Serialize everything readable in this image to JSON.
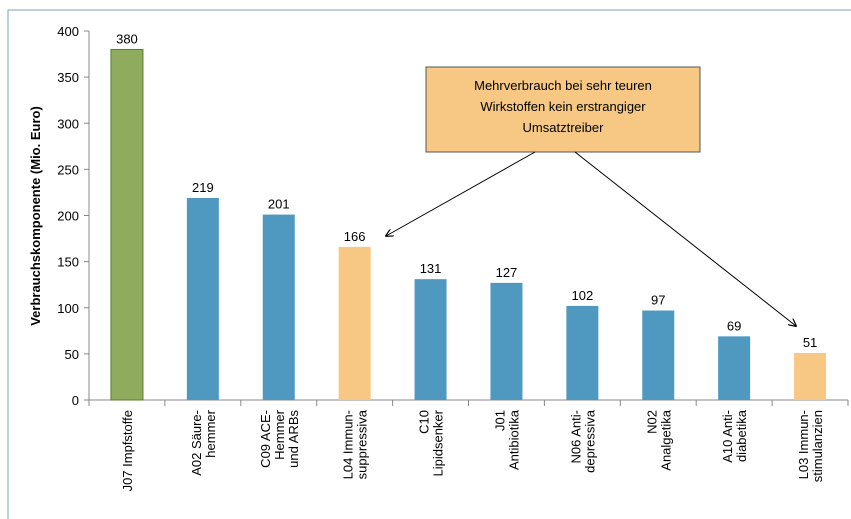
{
  "chart_data": {
    "type": "bar",
    "y_label": "Verbrauchskomponente (Mio. Euro)",
    "categories": [
      [
        "J07 Impfstoffe"
      ],
      [
        "A02 Säure-",
        "hemmer"
      ],
      [
        "C09 ACE-",
        "Hemmer",
        "und ARBs"
      ],
      [
        "L04 Immun-",
        "suppressiva"
      ],
      [
        "C10",
        "Lipidsenker"
      ],
      [
        "J01",
        "Antibiotika"
      ],
      [
        "N06 Anti-",
        "depressiva"
      ],
      [
        "N02",
        "Analgetika"
      ],
      [
        "A10 Anti-",
        "diabetika"
      ],
      [
        "L03 Immun-",
        "stimulanzien"
      ]
    ],
    "values": [
      380,
      219,
      201,
      166,
      131,
      127,
      102,
      97,
      69,
      51
    ],
    "colors": [
      "#8fac5e",
      "#4f98c0",
      "#4f98c0",
      "#f6c883",
      "#4f98c0",
      "#4f98c0",
      "#4f98c0",
      "#4f98c0",
      "#4f98c0",
      "#f6c883"
    ],
    "ylim": [
      0,
      400
    ],
    "yticks": [
      0,
      50,
      100,
      150,
      200,
      250,
      300,
      350,
      400
    ],
    "annotation": [
      "Mehrverbrauch bei sehr teuren",
      "Wirkstoffen kein erstrangiger",
      "Umsatztreiber"
    ]
  }
}
